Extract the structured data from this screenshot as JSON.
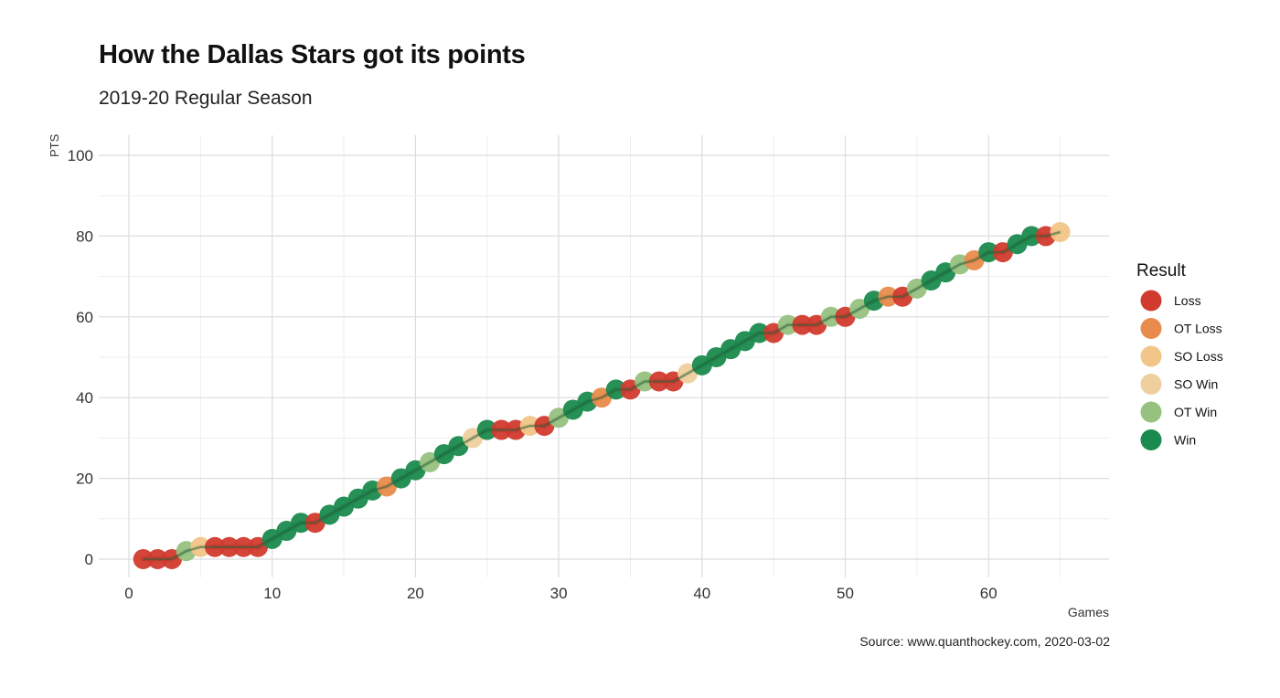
{
  "colors": {
    "Loss": "#d13a2e",
    "OT Loss": "#e98b4c",
    "SO Loss": "#f2c589",
    "SO Win": "#efcf9e",
    "OT Win": "#96c17f",
    "Win": "#1b8a4e",
    "line": "#2a5e3a"
  },
  "chart_data": {
    "type": "scatter",
    "title": "How the Dallas Stars got its points",
    "subtitle": "2019-20 Regular Season",
    "caption": "Source: www.quanthockey.com, 2020-03-02",
    "xlabel": "Games",
    "ylabel": "PTS",
    "xlim": [
      0,
      68
    ],
    "ylim": [
      -5,
      104
    ],
    "xticks": [
      0,
      10,
      20,
      30,
      40,
      50,
      60
    ],
    "yticks": [
      0,
      20,
      40,
      60,
      80,
      100
    ],
    "grid": true,
    "legend": {
      "title": "Result",
      "position": "right",
      "entries": [
        "Loss",
        "OT Loss",
        "SO Loss",
        "SO Win",
        "OT Win",
        "Win"
      ]
    },
    "series": [
      {
        "name": "PTS",
        "x": [
          1,
          2,
          3,
          4,
          5,
          6,
          7,
          8,
          9,
          10,
          11,
          12,
          13,
          14,
          15,
          16,
          17,
          18,
          19,
          20,
          21,
          22,
          23,
          24,
          25,
          26,
          27,
          28,
          29,
          30,
          31,
          32,
          33,
          34,
          35,
          36,
          37,
          38,
          39,
          40,
          41,
          42,
          43,
          44,
          45,
          46,
          47,
          48,
          49,
          50,
          51,
          52,
          53,
          54,
          55,
          56,
          57,
          58,
          59,
          60,
          61,
          62,
          63,
          64,
          65
        ],
        "y": [
          0,
          0,
          0,
          2,
          3,
          3,
          3,
          3,
          3,
          5,
          7,
          9,
          9,
          11,
          13,
          15,
          17,
          18,
          20,
          22,
          24,
          26,
          28,
          30,
          32,
          32,
          32,
          33,
          33,
          35,
          37,
          39,
          40,
          42,
          42,
          44,
          44,
          44,
          46,
          48,
          50,
          52,
          54,
          56,
          56,
          58,
          58,
          58,
          60,
          60,
          62,
          64,
          65,
          65,
          67,
          69,
          71,
          73,
          74,
          76,
          76,
          78,
          80,
          80,
          81
        ],
        "result": [
          "Loss",
          "Loss",
          "Loss",
          "OT Win",
          "SO Loss",
          "Loss",
          "Loss",
          "Loss",
          "Loss",
          "Win",
          "Win",
          "Win",
          "Loss",
          "Win",
          "Win",
          "Win",
          "Win",
          "OT Loss",
          "Win",
          "Win",
          "OT Win",
          "Win",
          "Win",
          "SO Win",
          "Win",
          "Loss",
          "Loss",
          "SO Loss",
          "Loss",
          "OT Win",
          "Win",
          "Win",
          "OT Loss",
          "Win",
          "Loss",
          "OT Win",
          "Loss",
          "Loss",
          "SO Win",
          "Win",
          "Win",
          "Win",
          "Win",
          "Win",
          "Loss",
          "OT Win",
          "Loss",
          "Loss",
          "OT Win",
          "Loss",
          "OT Win",
          "Win",
          "OT Loss",
          "Loss",
          "OT Win",
          "Win",
          "Win",
          "OT Win",
          "OT Loss",
          "Win",
          "Loss",
          "Win",
          "Win",
          "Loss",
          "SO Loss"
        ]
      }
    ]
  }
}
